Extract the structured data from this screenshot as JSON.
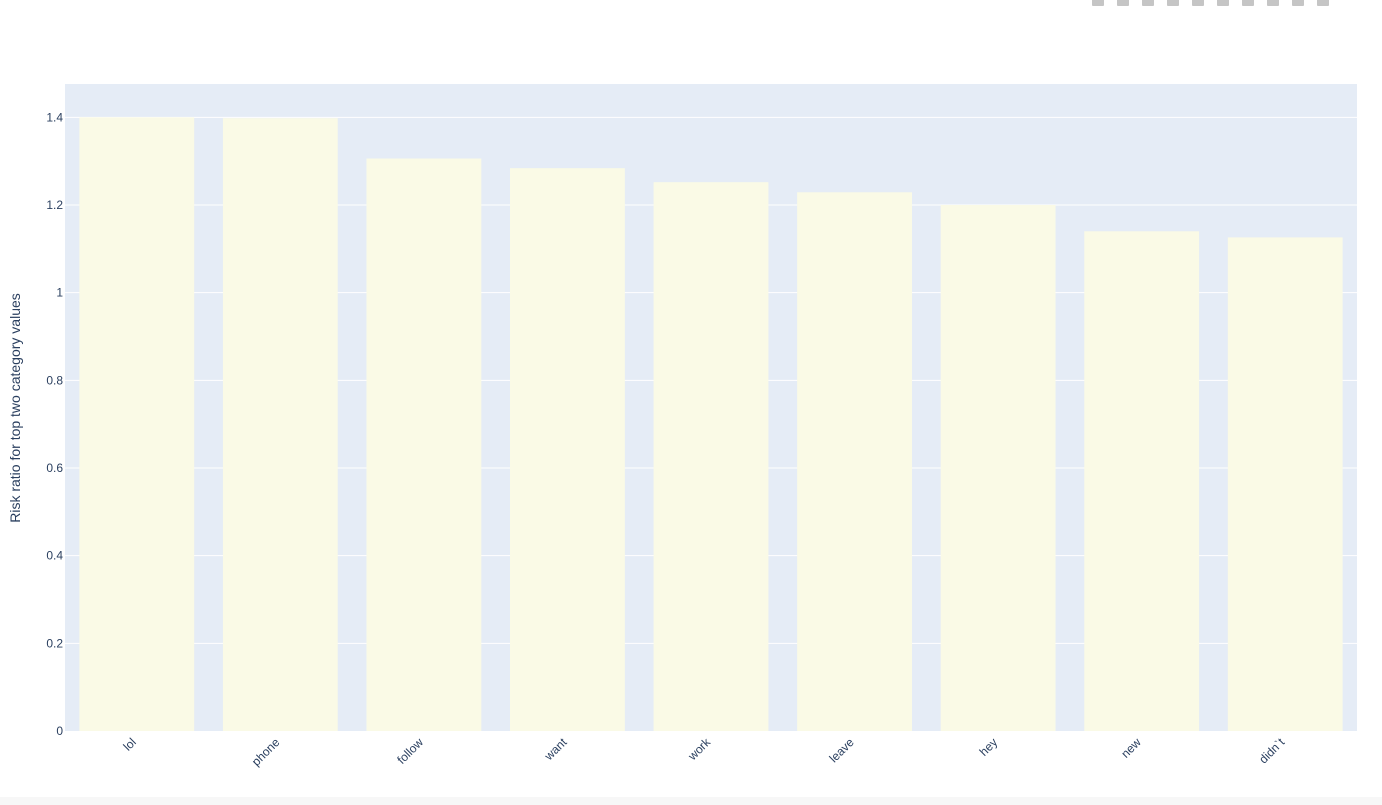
{
  "modebar": {
    "buttons": [
      {
        "name": "camera-icon",
        "label": "Download plot as a png"
      },
      {
        "name": "zoom-icon",
        "label": "Zoom"
      },
      {
        "name": "pan-icon",
        "label": "Pan"
      },
      {
        "name": "box-select-icon",
        "label": "Box Select"
      },
      {
        "name": "lasso-select-icon",
        "label": "Lasso Select"
      },
      {
        "name": "zoom-in-icon",
        "label": "Zoom in"
      },
      {
        "name": "zoom-out-icon",
        "label": "Zoom out"
      },
      {
        "name": "autoscale-icon",
        "label": "Autoscale"
      },
      {
        "name": "reset-axes-icon",
        "label": "Reset axes"
      },
      {
        "name": "plotly-logo-icon",
        "label": "Produced with Plotly"
      }
    ]
  },
  "colors": {
    "plot_background": "#E5ECF6",
    "bar_fill": "#FAFAE6",
    "gridline": "#FFFFFF",
    "text": "#2A3F5F"
  },
  "chart_data": {
    "type": "bar",
    "categories": [
      "lol",
      "phone",
      "follow",
      "want",
      "work",
      "leave",
      "hey",
      "new",
      "didn`t"
    ],
    "values": [
      1.4,
      1.398,
      1.306,
      1.284,
      1.252,
      1.229,
      1.2,
      1.14,
      1.126
    ],
    "title": "",
    "xlabel": "",
    "ylabel": "Risk ratio for top two category values",
    "ylim": [
      0,
      1.476
    ],
    "yticks": [
      0,
      0.2,
      0.4,
      0.6,
      0.8,
      1,
      1.2,
      1.4
    ],
    "ytick_labels": [
      "0",
      "0.2",
      "0.4",
      "0.6",
      "0.8",
      "1",
      "1.2",
      "1.4"
    ],
    "grid": true,
    "legend": "none",
    "x_tick_angle_deg": -45
  }
}
